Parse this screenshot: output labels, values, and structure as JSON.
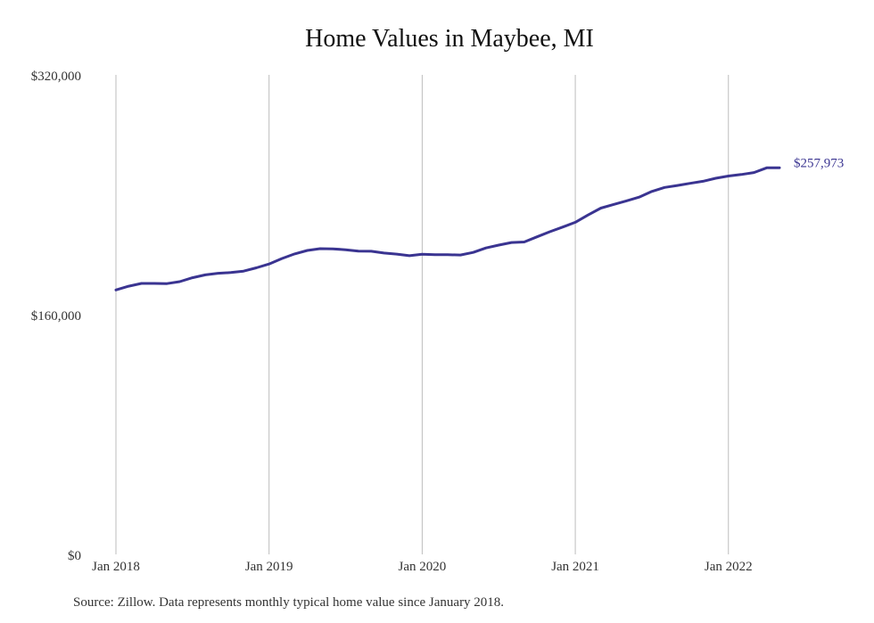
{
  "chart_data": {
    "type": "line",
    "title": "Home Values in Maybee, MI",
    "xlabel": "",
    "ylabel": "",
    "x_ticks": [
      "Jan 2018",
      "Jan 2019",
      "Jan 2020",
      "Jan 2021",
      "Jan 2022"
    ],
    "y_ticks": [
      {
        "value": 0,
        "label": "$0"
      },
      {
        "value": 160000,
        "label": "$160,000"
      },
      {
        "value": 320000,
        "label": "$320,000"
      }
    ],
    "ylim": [
      0,
      320000
    ],
    "xlim": [
      "2018-01",
      "2022-05"
    ],
    "grid": "vertical",
    "line_color": "#3a3491",
    "end_label": "$257,973",
    "series": [
      {
        "x": [
          "2018-01",
          "2018-02",
          "2018-03",
          "2018-04",
          "2018-05",
          "2018-06",
          "2018-07",
          "2018-08",
          "2018-09",
          "2018-10",
          "2018-11",
          "2018-12",
          "2019-01",
          "2019-02",
          "2019-03",
          "2019-04",
          "2019-05",
          "2019-06",
          "2019-07",
          "2019-08",
          "2019-09",
          "2019-10",
          "2019-11",
          "2019-12",
          "2020-01",
          "2020-02",
          "2020-03",
          "2020-04",
          "2020-05",
          "2020-06",
          "2020-07",
          "2020-08",
          "2020-09",
          "2020-10",
          "2020-11",
          "2020-12",
          "2021-01",
          "2021-02",
          "2021-03",
          "2021-04",
          "2021-05",
          "2021-06",
          "2021-07",
          "2021-08",
          "2021-09",
          "2021-10",
          "2021-11",
          "2021-12",
          "2022-01",
          "2022-02",
          "2022-03",
          "2022-04",
          "2022-05"
        ],
        "values": [
          176500,
          179000,
          180800,
          180800,
          180700,
          182000,
          184600,
          186500,
          187600,
          188100,
          189000,
          191200,
          193800,
          197400,
          200500,
          202800,
          204000,
          203900,
          203300,
          202400,
          202300,
          201100,
          200400,
          199300,
          200300,
          200000,
          200000,
          199800,
          201500,
          204500,
          206400,
          208100,
          208500,
          211900,
          215300,
          218400,
          221600,
          226500,
          231100,
          233500,
          235900,
          238400,
          242200,
          244900,
          246200,
          247600,
          249000,
          251000,
          252500,
          253500,
          254800,
          257973,
          257973
        ]
      }
    ]
  },
  "source_note": "Source: Zillow. Data represents monthly typical home value since January 2018."
}
